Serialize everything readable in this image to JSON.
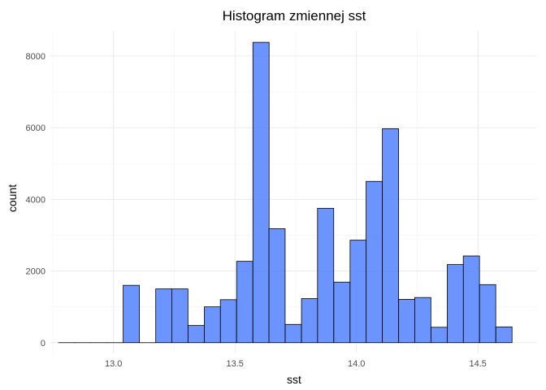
{
  "chart_data": {
    "type": "bar",
    "title": "Histogram zmiennej  sst",
    "xlabel": "sst",
    "ylabel": "count",
    "xlim": [
      12.74,
      14.74
    ],
    "ylim": [
      -300,
      8700
    ],
    "x_ticks": [
      13.0,
      13.5,
      14.0,
      14.5
    ],
    "x_tick_labels": [
      "13.0",
      "13.5",
      "14.0",
      "14.5"
    ],
    "y_ticks": [
      0,
      2000,
      4000,
      6000,
      8000
    ],
    "y_tick_labels": [
      "0",
      "2000",
      "4000",
      "6000",
      "8000"
    ],
    "grid": true,
    "bin_width": 0.0667,
    "bins": [
      {
        "x": 12.807,
        "count": 0
      },
      {
        "x": 12.873,
        "count": 0
      },
      {
        "x": 12.94,
        "count": 0
      },
      {
        "x": 13.007,
        "count": 0
      },
      {
        "x": 13.073,
        "count": 1600
      },
      {
        "x": 13.14,
        "count": 0
      },
      {
        "x": 13.207,
        "count": 1500
      },
      {
        "x": 13.273,
        "count": 1500
      },
      {
        "x": 13.34,
        "count": 480
      },
      {
        "x": 13.407,
        "count": 1000
      },
      {
        "x": 13.473,
        "count": 1200
      },
      {
        "x": 13.54,
        "count": 2270
      },
      {
        "x": 13.607,
        "count": 8380
      },
      {
        "x": 13.673,
        "count": 3180
      },
      {
        "x": 13.74,
        "count": 510
      },
      {
        "x": 13.807,
        "count": 1230
      },
      {
        "x": 13.873,
        "count": 3750
      },
      {
        "x": 13.94,
        "count": 1690
      },
      {
        "x": 14.007,
        "count": 2860
      },
      {
        "x": 14.073,
        "count": 4500
      },
      {
        "x": 14.14,
        "count": 5970
      },
      {
        "x": 14.207,
        "count": 1210
      },
      {
        "x": 14.273,
        "count": 1260
      },
      {
        "x": 14.34,
        "count": 430
      },
      {
        "x": 14.407,
        "count": 2180
      },
      {
        "x": 14.473,
        "count": 2420
      },
      {
        "x": 14.54,
        "count": 1620
      },
      {
        "x": 14.607,
        "count": 440
      }
    ],
    "colors": {
      "bar_fill": "#4a7cff",
      "bar_outline": "#000000",
      "grid": "#ebebeb"
    }
  }
}
